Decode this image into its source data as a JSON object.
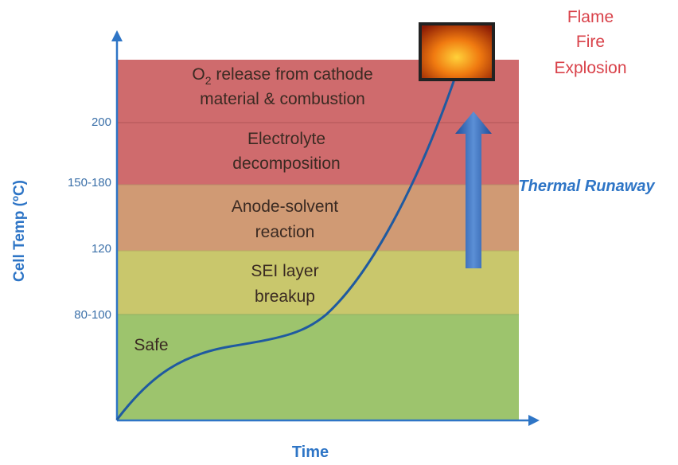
{
  "axes": {
    "y_label": "Cell Temp (ºC)",
    "x_label": "Time"
  },
  "levels": [
    "200",
    "150-180",
    "120",
    "80-100"
  ],
  "zones": {
    "o2": {
      "main": "O",
      "sub": "2",
      "rest": " release from cathode",
      "line2": "material & combustion"
    },
    "electrolyte": [
      "Electrolyte",
      "decomposition"
    ],
    "anode": [
      "Anode-solvent",
      "reaction"
    ],
    "sei": [
      "SEI layer",
      "breakup"
    ],
    "safe": "Safe"
  },
  "outcome": [
    "Flame",
    "Fire",
    "Explosion"
  ],
  "arrow_label": "Thermal Runaway"
}
